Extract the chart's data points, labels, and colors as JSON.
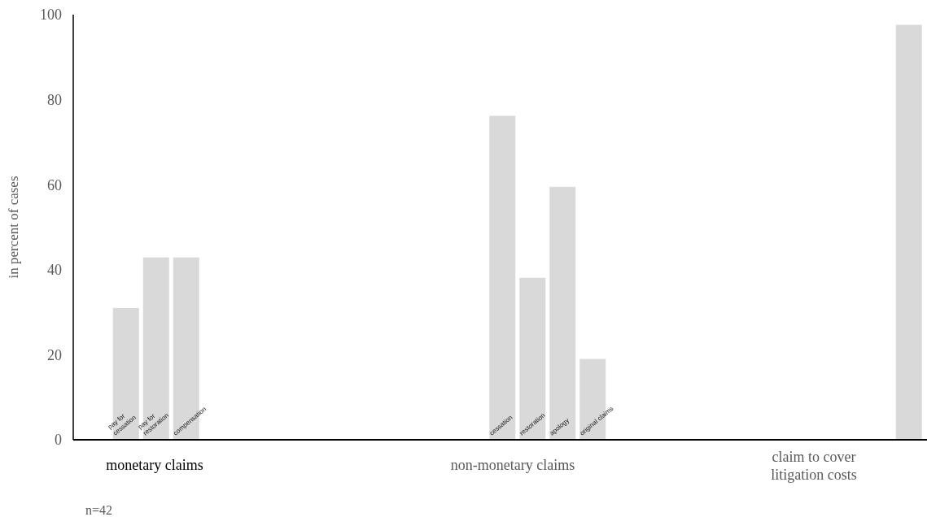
{
  "chart_data": {
    "type": "bar",
    "ylabel": "in percent of cases",
    "color": "#d9d9d9",
    "ylim": [
      0,
      100
    ],
    "yticks": [
      0,
      20,
      40,
      60,
      80,
      100
    ],
    "grid": false,
    "categories": [
      null,
      null,
      null,
      "pay for cessation",
      null,
      "pay for restoration",
      null,
      "compensation",
      null,
      null,
      null,
      null,
      null,
      null,
      null,
      null,
      null,
      null,
      null,
      null,
      null,
      null,
      null,
      null,
      null,
      null,
      null,
      null,
      "cessation",
      null,
      "restoration",
      null,
      "apology",
      null,
      "original claims",
      null,
      null,
      null,
      null,
      null,
      null,
      null,
      null,
      null,
      null,
      null,
      null,
      null,
      null,
      null,
      null,
      null,
      null,
      null,
      null,
      null,
      null
    ],
    "values": [
      null,
      null,
      null,
      31,
      null,
      42.9,
      null,
      42.9,
      null,
      null,
      null,
      null,
      null,
      null,
      null,
      null,
      null,
      null,
      null,
      null,
      null,
      null,
      null,
      null,
      null,
      null,
      null,
      null,
      76.2,
      null,
      38.1,
      null,
      59.5,
      null,
      19,
      null,
      null,
      null,
      null,
      null,
      null,
      null,
      null,
      null,
      null,
      null,
      null,
      null,
      null,
      null,
      null,
      null,
      null,
      null,
      null,
      97.6,
      null
    ],
    "annotations": [
      "monetary claims",
      "non-monetary claims",
      "claim to cover litigation costs",
      "n=42"
    ]
  }
}
